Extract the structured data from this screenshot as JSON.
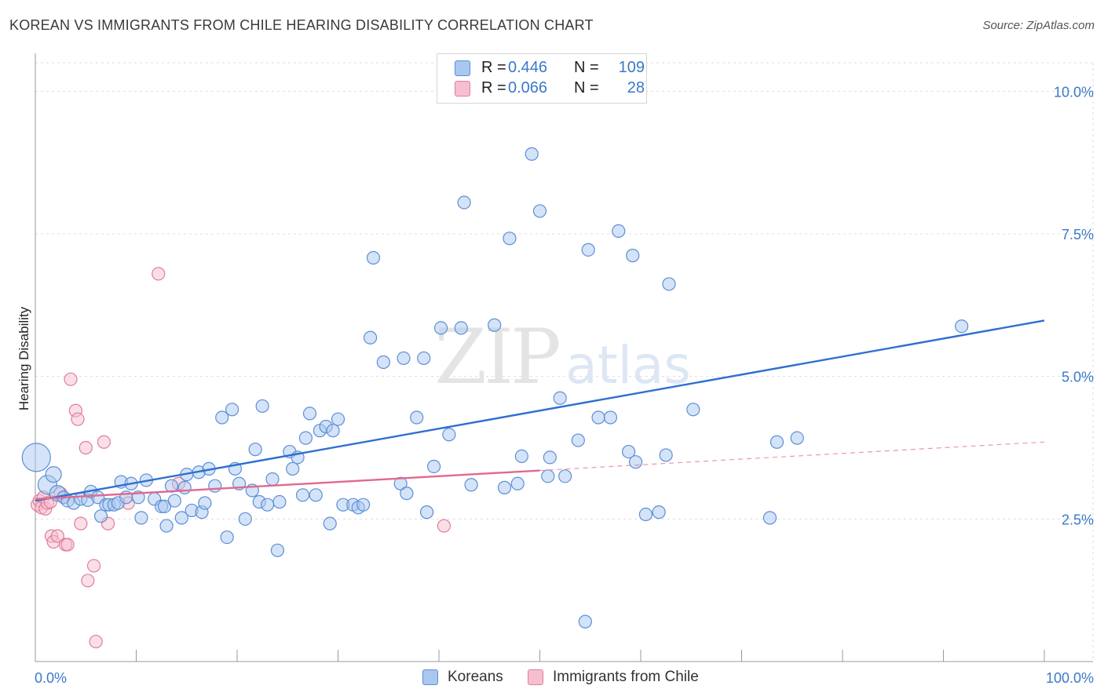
{
  "title": "KOREAN VS IMMIGRANTS FROM CHILE HEARING DISABILITY CORRELATION CHART",
  "source": "Source: ZipAtlas.com",
  "watermark": {
    "zip": "ZIP",
    "atlas": "atlas"
  },
  "legend_top": {
    "rows": [
      {
        "r_label": "R =",
        "r_value": "0.446",
        "n_label": "N =",
        "n_value": "109"
      },
      {
        "r_label": "R =",
        "r_value": "0.066",
        "n_label": "N =",
        "n_value": "28"
      }
    ]
  },
  "colors": {
    "blue_fill": "#a9c8ef",
    "blue_stroke": "#5b8fd6",
    "blue_line": "#2f6fd0",
    "pink_fill": "#f6bfd0",
    "pink_stroke": "#e07e9d",
    "pink_line": "#e2688f",
    "axis_text": "#3b78c9",
    "grid": "#dddddd"
  },
  "chart_data": {
    "type": "scatter",
    "title": "KOREAN VS IMMIGRANTS FROM CHILE HEARING DISABILITY CORRELATION CHART",
    "xlabel": "",
    "ylabel": "Hearing Disability",
    "xlim": [
      0,
      100
    ],
    "ylim": [
      0,
      10.5
    ],
    "x_tick_labels": [
      "0.0%",
      "100.0%"
    ],
    "y_ticks": [
      2.5,
      5.0,
      7.5,
      10.0
    ],
    "y_tick_labels": [
      "2.5%",
      "5.0%",
      "7.5%",
      "10.0%"
    ],
    "grid": true,
    "legend_position": "bottom",
    "series": [
      {
        "name": "Koreans",
        "r": 0.446,
        "n": 109,
        "trend": {
          "x": [
            0,
            100
          ],
          "y": [
            2.82,
            5.98
          ]
        },
        "points": [
          {
            "x": 0.1,
            "y": 3.58,
            "s": 18
          },
          {
            "x": 1.2,
            "y": 3.1,
            "s": 12
          },
          {
            "x": 1.8,
            "y": 3.28,
            "s": 10
          },
          {
            "x": 2.2,
            "y": 2.95,
            "s": 10
          },
          {
            "x": 2.8,
            "y": 2.88
          },
          {
            "x": 3.2,
            "y": 2.82
          },
          {
            "x": 3.8,
            "y": 2.78
          },
          {
            "x": 4.5,
            "y": 2.85
          },
          {
            "x": 5.2,
            "y": 2.83
          },
          {
            "x": 5.5,
            "y": 2.98
          },
          {
            "x": 6.2,
            "y": 2.88
          },
          {
            "x": 6.5,
            "y": 2.55
          },
          {
            "x": 7.0,
            "y": 2.75
          },
          {
            "x": 7.3,
            "y": 2.75
          },
          {
            "x": 7.8,
            "y": 2.75
          },
          {
            "x": 8.2,
            "y": 2.78
          },
          {
            "x": 8.5,
            "y": 3.15
          },
          {
            "x": 9.0,
            "y": 2.88
          },
          {
            "x": 9.5,
            "y": 3.12
          },
          {
            "x": 10.2,
            "y": 2.88
          },
          {
            "x": 10.5,
            "y": 2.52
          },
          {
            "x": 11.0,
            "y": 3.18
          },
          {
            "x": 11.8,
            "y": 2.85
          },
          {
            "x": 12.5,
            "y": 2.72
          },
          {
            "x": 12.8,
            "y": 2.72
          },
          {
            "x": 13.0,
            "y": 2.38
          },
          {
            "x": 13.5,
            "y": 3.08
          },
          {
            "x": 13.8,
            "y": 2.82
          },
          {
            "x": 14.5,
            "y": 2.52
          },
          {
            "x": 14.8,
            "y": 3.05
          },
          {
            "x": 15.0,
            "y": 3.28
          },
          {
            "x": 15.5,
            "y": 2.65
          },
          {
            "x": 16.2,
            "y": 3.32
          },
          {
            "x": 16.5,
            "y": 2.62
          },
          {
            "x": 16.8,
            "y": 2.78
          },
          {
            "x": 17.2,
            "y": 3.38
          },
          {
            "x": 17.8,
            "y": 3.08
          },
          {
            "x": 18.5,
            "y": 4.28
          },
          {
            "x": 19.0,
            "y": 2.18
          },
          {
            "x": 19.5,
            "y": 4.42
          },
          {
            "x": 19.8,
            "y": 3.38
          },
          {
            "x": 20.2,
            "y": 3.12
          },
          {
            "x": 20.8,
            "y": 2.5
          },
          {
            "x": 21.5,
            "y": 3.0
          },
          {
            "x": 21.8,
            "y": 3.72
          },
          {
            "x": 22.2,
            "y": 2.8
          },
          {
            "x": 22.5,
            "y": 4.48
          },
          {
            "x": 23.0,
            "y": 2.75
          },
          {
            "x": 23.5,
            "y": 3.2
          },
          {
            "x": 24.0,
            "y": 1.95
          },
          {
            "x": 24.2,
            "y": 2.8
          },
          {
            "x": 25.2,
            "y": 3.68
          },
          {
            "x": 25.5,
            "y": 3.38
          },
          {
            "x": 26.0,
            "y": 3.58
          },
          {
            "x": 26.5,
            "y": 2.92
          },
          {
            "x": 26.8,
            "y": 3.92
          },
          {
            "x": 27.2,
            "y": 4.35
          },
          {
            "x": 27.8,
            "y": 2.92
          },
          {
            "x": 28.2,
            "y": 4.05
          },
          {
            "x": 28.8,
            "y": 4.12
          },
          {
            "x": 29.2,
            "y": 2.42
          },
          {
            "x": 29.5,
            "y": 4.05
          },
          {
            "x": 30.0,
            "y": 4.25
          },
          {
            "x": 30.5,
            "y": 2.75
          },
          {
            "x": 31.5,
            "y": 2.75
          },
          {
            "x": 32.0,
            "y": 2.7
          },
          {
            "x": 32.5,
            "y": 2.75
          },
          {
            "x": 33.2,
            "y": 5.68
          },
          {
            "x": 33.5,
            "y": 7.08
          },
          {
            "x": 34.5,
            "y": 5.25
          },
          {
            "x": 36.2,
            "y": 3.12
          },
          {
            "x": 36.5,
            "y": 5.32
          },
          {
            "x": 36.8,
            "y": 2.95
          },
          {
            "x": 37.8,
            "y": 4.28
          },
          {
            "x": 38.5,
            "y": 5.32
          },
          {
            "x": 38.8,
            "y": 2.62
          },
          {
            "x": 39.5,
            "y": 3.42
          },
          {
            "x": 40.2,
            "y": 5.85
          },
          {
            "x": 41.0,
            "y": 3.98
          },
          {
            "x": 42.2,
            "y": 5.85
          },
          {
            "x": 42.5,
            "y": 8.05
          },
          {
            "x": 43.2,
            "y": 3.1
          },
          {
            "x": 45.5,
            "y": 5.9
          },
          {
            "x": 46.5,
            "y": 3.05
          },
          {
            "x": 47.0,
            "y": 7.42
          },
          {
            "x": 47.8,
            "y": 3.12
          },
          {
            "x": 48.2,
            "y": 3.6
          },
          {
            "x": 49.2,
            "y": 8.9
          },
          {
            "x": 50.0,
            "y": 7.9
          },
          {
            "x": 50.8,
            "y": 3.25
          },
          {
            "x": 51.0,
            "y": 3.58
          },
          {
            "x": 52.0,
            "y": 4.62
          },
          {
            "x": 52.5,
            "y": 3.25
          },
          {
            "x": 53.8,
            "y": 3.88
          },
          {
            "x": 54.5,
            "y": 0.7
          },
          {
            "x": 54.8,
            "y": 7.22
          },
          {
            "x": 55.8,
            "y": 4.28
          },
          {
            "x": 57.0,
            "y": 4.28
          },
          {
            "x": 57.8,
            "y": 7.55
          },
          {
            "x": 58.8,
            "y": 3.68
          },
          {
            "x": 59.2,
            "y": 7.12
          },
          {
            "x": 59.5,
            "y": 3.5
          },
          {
            "x": 60.5,
            "y": 2.58
          },
          {
            "x": 61.8,
            "y": 2.62
          },
          {
            "x": 62.5,
            "y": 3.62
          },
          {
            "x": 62.8,
            "y": 6.62
          },
          {
            "x": 65.2,
            "y": 4.42
          },
          {
            "x": 72.8,
            "y": 2.52
          },
          {
            "x": 73.5,
            "y": 3.85
          },
          {
            "x": 75.5,
            "y": 3.92
          },
          {
            "x": 91.8,
            "y": 5.88
          }
        ]
      },
      {
        "name": "Immigrants from Chile",
        "r": 0.066,
        "n": 28,
        "trend": {
          "x": [
            0,
            50
          ],
          "y": [
            2.85,
            3.35
          ]
        },
        "trend_extension": {
          "x": [
            50,
            100
          ],
          "y": [
            3.35,
            3.85
          ]
        },
        "points": [
          {
            "x": 0.2,
            "y": 2.75
          },
          {
            "x": 0.4,
            "y": 2.82
          },
          {
            "x": 0.6,
            "y": 2.7
          },
          {
            "x": 0.8,
            "y": 2.88
          },
          {
            "x": 1.0,
            "y": 2.68
          },
          {
            "x": 1.2,
            "y": 2.78
          },
          {
            "x": 1.5,
            "y": 2.8
          },
          {
            "x": 1.6,
            "y": 2.2
          },
          {
            "x": 1.8,
            "y": 2.1
          },
          {
            "x": 2.2,
            "y": 2.2
          },
          {
            "x": 2.5,
            "y": 2.95
          },
          {
            "x": 2.8,
            "y": 2.88
          },
          {
            "x": 3.0,
            "y": 2.05
          },
          {
            "x": 3.2,
            "y": 2.05
          },
          {
            "x": 3.5,
            "y": 4.95
          },
          {
            "x": 4.0,
            "y": 4.4
          },
          {
            "x": 4.2,
            "y": 4.25
          },
          {
            "x": 4.5,
            "y": 2.42
          },
          {
            "x": 5.0,
            "y": 3.75
          },
          {
            "x": 5.2,
            "y": 1.42
          },
          {
            "x": 5.8,
            "y": 1.68
          },
          {
            "x": 6.0,
            "y": 0.35
          },
          {
            "x": 6.8,
            "y": 3.85
          },
          {
            "x": 7.2,
            "y": 2.42
          },
          {
            "x": 9.2,
            "y": 2.78
          },
          {
            "x": 12.2,
            "y": 6.8
          },
          {
            "x": 14.2,
            "y": 3.12
          },
          {
            "x": 40.5,
            "y": 2.38
          }
        ]
      }
    ]
  },
  "legend_bottom": [
    {
      "label": "Koreans"
    },
    {
      "label": "Immigrants from Chile"
    }
  ]
}
